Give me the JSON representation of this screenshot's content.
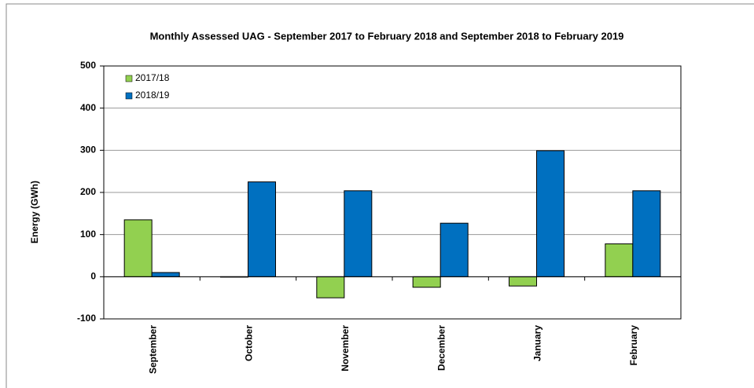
{
  "chart_data": {
    "type": "bar",
    "title": "Monthly Assessed UAG - September 2017 to February 2018 and September 2018 to February 2019",
    "y_label": "Energy (GWh)",
    "categories": [
      "September",
      "October",
      "November",
      "December",
      "January",
      "February"
    ],
    "series": [
      {
        "name": "2017/18",
        "color": "#92d050",
        "values": [
          135,
          -1,
          -50,
          -25,
          -22,
          78
        ]
      },
      {
        "name": "2018/19",
        "color": "#0070c0",
        "values": [
          10,
          225,
          204,
          127,
          299,
          204
        ]
      }
    ],
    "ylim": [
      -100,
      500
    ],
    "yticks": [
      -100,
      0,
      100,
      200,
      300,
      400,
      500
    ],
    "grid": true,
    "legend": "top-left"
  }
}
